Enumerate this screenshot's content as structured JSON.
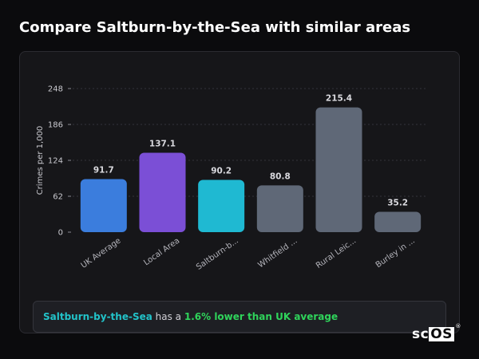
{
  "page": {
    "title": "Compare Saltburn-by-the-Sea with similar areas"
  },
  "chart_data": {
    "type": "bar",
    "title": "",
    "ylabel": "Crimes per 1,000",
    "xlabel": "",
    "ylim": [
      0,
      248
    ],
    "yticks": [
      0,
      62,
      124,
      186,
      248
    ],
    "grid": true,
    "categories": [
      "UK Average",
      "Local Area",
      "Saltburn-b...",
      "Whitfield ...",
      "Rural Leic...",
      "Burley in ..."
    ],
    "values": [
      91.7,
      137.1,
      90.2,
      80.8,
      215.4,
      35.2
    ],
    "value_labels": [
      "91.7",
      "137.1",
      "90.2",
      "80.8",
      "215.4",
      "35.2"
    ],
    "colors": [
      "#3b7ddd",
      "#7b4fd6",
      "#1fb9d2",
      "#5f6877",
      "#5f6877",
      "#5f6877"
    ]
  },
  "summary": {
    "area": "Saltburn-by-the-Sea",
    "middle": " has a ",
    "difference": "1.6% lower than UK average"
  },
  "logo": {
    "text_sc": "sc",
    "text_os": "OS",
    "reg": "®"
  }
}
